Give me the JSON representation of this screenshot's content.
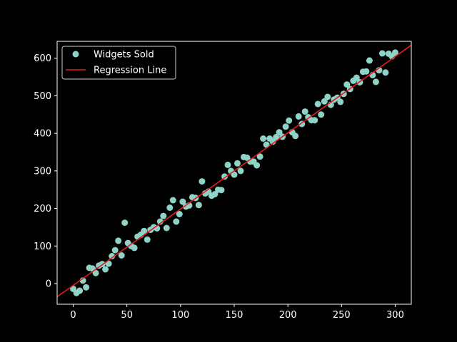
{
  "chart_data": {
    "type": "scatter",
    "title": "",
    "xlabel": "",
    "ylabel": "",
    "xlim": [
      -15,
      315
    ],
    "ylim": [
      -55,
      645
    ],
    "xticks": [
      0,
      50,
      100,
      150,
      200,
      250,
      300
    ],
    "yticks": [
      0,
      100,
      200,
      300,
      400,
      500,
      600
    ],
    "grid": false,
    "legend": {
      "location": "upper-left",
      "entries": [
        "Widgets Sold",
        "Regression Line"
      ]
    },
    "series": [
      {
        "name": "Widgets Sold",
        "kind": "scatter",
        "color": "#8dd3c7",
        "x": [
          0,
          3,
          6,
          9,
          12,
          15,
          18,
          21,
          24,
          27,
          30,
          33,
          36,
          39,
          42,
          45,
          48,
          51,
          54,
          57,
          60,
          63,
          66,
          69,
          72,
          75,
          78,
          81,
          84,
          87,
          90,
          93,
          96,
          99,
          102,
          105,
          108,
          111,
          114,
          117,
          120,
          123,
          126,
          129,
          132,
          135,
          138,
          141,
          144,
          147,
          150,
          153,
          156,
          159,
          162,
          165,
          168,
          171,
          174,
          177,
          180,
          183,
          186,
          189,
          192,
          195,
          198,
          201,
          204,
          207,
          210,
          213,
          216,
          219,
          222,
          225,
          228,
          231,
          234,
          237,
          240,
          243,
          246,
          249,
          252,
          255,
          258,
          261,
          264,
          267,
          270,
          273,
          276,
          279,
          282,
          285,
          288,
          291,
          294,
          297,
          300
        ],
        "y": [
          -14,
          -25,
          -19,
          8,
          -10,
          42,
          40,
          28,
          48,
          52,
          38,
          53,
          73,
          89,
          114,
          75,
          162,
          108,
          100,
          95,
          125,
          130,
          140,
          117,
          143,
          150,
          147,
          165,
          180,
          148,
          202,
          222,
          165,
          185,
          218,
          205,
          208,
          230,
          228,
          209,
          272,
          240,
          245,
          234,
          238,
          250,
          249,
          285,
          316,
          300,
          290,
          320,
          300,
          337,
          335,
          325,
          325,
          315,
          338,
          386,
          370,
          386,
          378,
          390,
          403,
          391,
          418,
          434,
          403,
          393,
          445,
          425,
          458,
          443,
          435,
          435,
          478,
          450,
          485,
          497,
          476,
          490,
          495,
          484,
          505,
          530,
          518,
          540,
          548,
          536,
          564,
          565,
          594,
          555,
          537,
          568,
          613,
          562,
          612,
          605,
          615
        ]
      },
      {
        "name": "Regression Line",
        "kind": "line",
        "color": "#e41a1c",
        "x": [
          -15,
          315
        ],
        "y": [
          -35,
          635
        ]
      }
    ]
  }
}
